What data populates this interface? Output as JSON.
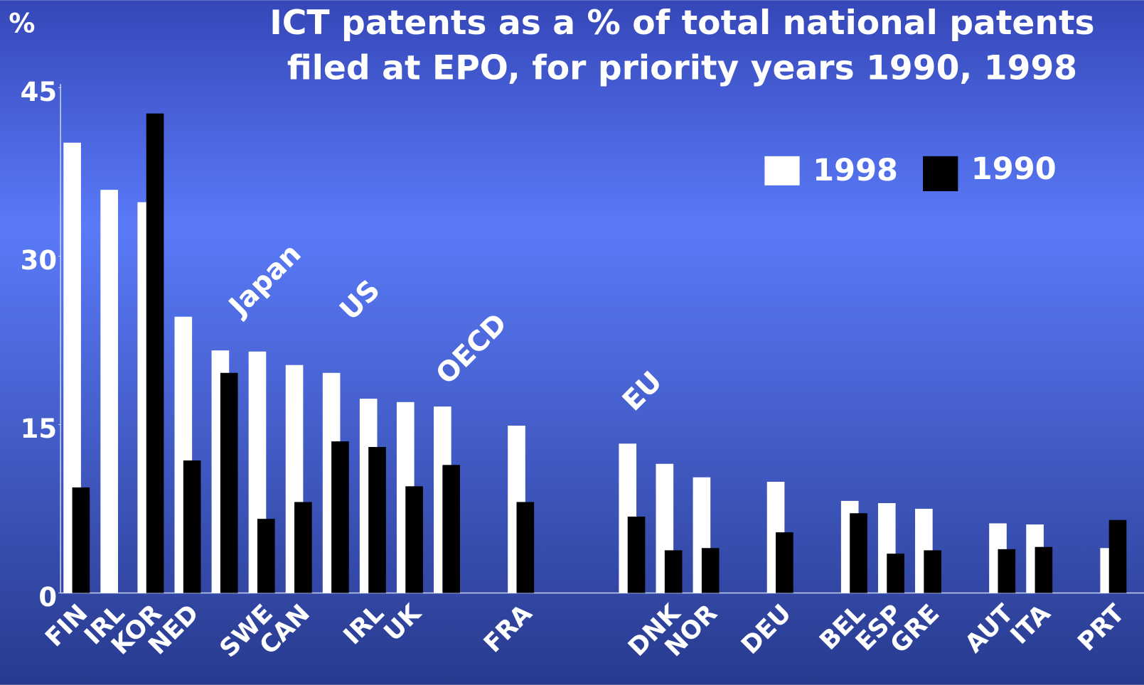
{
  "chart_data": {
    "type": "bar",
    "title": "ICT patents as a % of total national patents",
    "subtitle": "filed at EPO, for priority years 1990, 1998",
    "y_axis_label": "%",
    "categories": [
      "FIN",
      "IRL",
      "KOR",
      "NED",
      null,
      "SWE",
      "CAN",
      null,
      "IRL",
      "UK",
      null,
      null,
      "FRA",
      null,
      null,
      null,
      "DNK",
      "NOR",
      null,
      "DEU",
      null,
      "BEL",
      "ESP",
      "GRE",
      null,
      "AUT",
      "ITA",
      null,
      "PRT"
    ],
    "series": [
      {
        "name": "1998",
        "color": "#ffffff",
        "values": [
          40.1,
          35.9,
          34.8,
          24.6,
          21.6,
          21.5,
          20.3,
          19.6,
          17.3,
          17.0,
          16.6,
          null,
          14.9,
          null,
          null,
          13.3,
          11.5,
          10.3,
          null,
          9.9,
          null,
          8.2,
          8.0,
          7.5,
          null,
          6.2,
          6.1,
          null,
          4.0
        ]
      },
      {
        "name": "1990",
        "color": "#000000",
        "values": [
          9.4,
          null,
          42.7,
          11.8,
          19.6,
          6.6,
          8.1,
          13.5,
          13.0,
          9.5,
          11.4,
          null,
          8.1,
          null,
          null,
          6.8,
          3.8,
          4.0,
          null,
          5.4,
          null,
          7.1,
          3.5,
          3.8,
          null,
          3.9,
          4.1,
          null,
          6.5
        ]
      }
    ],
    "annotations": [
      "Japan",
      "US",
      "OECD",
      "EU"
    ],
    "ylim": [
      0,
      45
    ],
    "yticks": [
      0,
      15,
      30,
      45
    ],
    "legend": "top-right"
  }
}
